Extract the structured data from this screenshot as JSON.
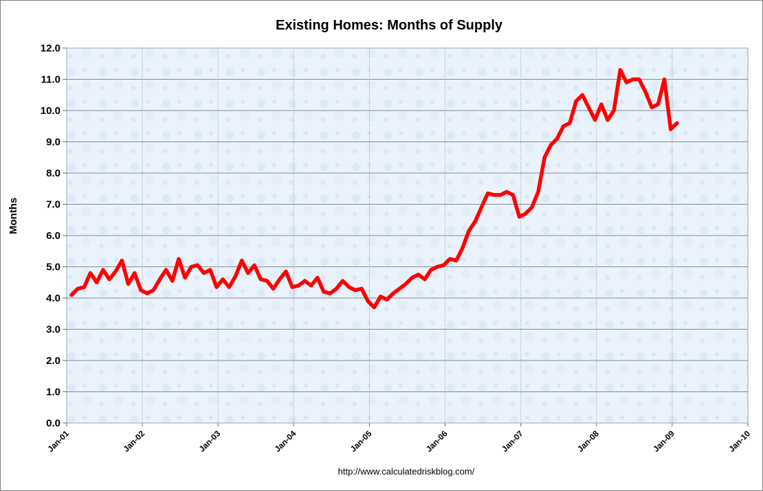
{
  "chart_data": {
    "type": "line",
    "title": "Existing Homes: Months of Supply",
    "ylabel": "Months",
    "xlabel": "",
    "source": "http://www.calculatedriskblog.com/",
    "ylim": [
      0,
      12
    ],
    "y_ticks": [
      "0.0",
      "1.0",
      "2.0",
      "3.0",
      "4.0",
      "5.0",
      "6.0",
      "7.0",
      "8.0",
      "9.0",
      "10.0",
      "11.0",
      "12.0"
    ],
    "x_ticks": [
      "Jan-01",
      "Jan-02",
      "Jan-03",
      "Jan-04",
      "Jan-05",
      "Jan-06",
      "Jan-07",
      "Jan-08",
      "Jan-09",
      "Jan-10"
    ],
    "grid": true,
    "legend": "none",
    "colors": {
      "series": "#ff0000",
      "plot_background": "#eaf2fb",
      "grid": "#7f8c99"
    },
    "series": [
      {
        "start": "Jan-01",
        "values": [
          4.1,
          4.3,
          4.35,
          4.8,
          4.5,
          4.9,
          4.6,
          4.85,
          5.2,
          4.45,
          4.8,
          4.25,
          4.15,
          4.25,
          4.6,
          4.9,
          4.55,
          5.25,
          4.65,
          5.0,
          5.05,
          4.8,
          4.9,
          4.35,
          4.6,
          4.35,
          4.7,
          5.2,
          4.8,
          5.05,
          4.6,
          4.55,
          4.3,
          4.6,
          4.85,
          4.35,
          4.4,
          4.55,
          4.4,
          4.65,
          4.2,
          4.15,
          4.3,
          4.55,
          4.35,
          4.25,
          4.3,
          3.9,
          3.7,
          4.05,
          3.95,
          4.15,
          4.3,
          4.45,
          4.65,
          4.75,
          4.6,
          4.9,
          5.0,
          5.05,
          5.25,
          5.2,
          5.6,
          6.15,
          6.45,
          6.9,
          7.35,
          7.3,
          7.3,
          7.4,
          7.3,
          6.6,
          6.7,
          6.9,
          7.4,
          8.5,
          8.9,
          9.1,
          9.5,
          9.6,
          10.3,
          10.5,
          10.1,
          9.7,
          10.2,
          9.7,
          10.0,
          11.3,
          10.9,
          11.0,
          11.0,
          10.6,
          10.1,
          10.2,
          11.0,
          9.4,
          9.6
        ]
      }
    ]
  }
}
